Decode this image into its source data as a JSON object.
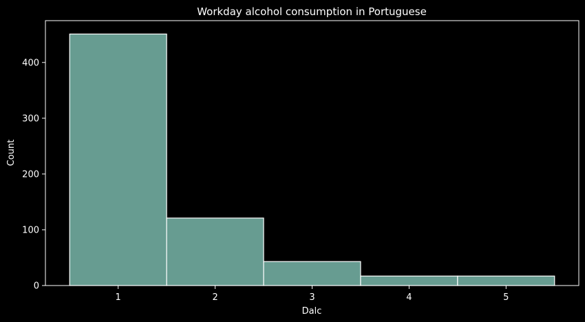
{
  "chart_data": {
    "type": "bar",
    "title": "Workday alcohol consumption in Portuguese",
    "xlabel": "Dalc",
    "ylabel": "Count",
    "categories": [
      "1",
      "2",
      "3",
      "4",
      "5"
    ],
    "values": [
      451,
      121,
      43,
      17,
      17
    ],
    "ylim": [
      0,
      475
    ],
    "yticks": [
      "0",
      "100",
      "200",
      "300",
      "400"
    ],
    "grid": false,
    "legend": "none",
    "colors": {
      "background": "#000000",
      "bar_fill": "#679c91",
      "bar_edge": "#ffffff",
      "axis": "#ffffff",
      "text": "#ffffff"
    }
  }
}
